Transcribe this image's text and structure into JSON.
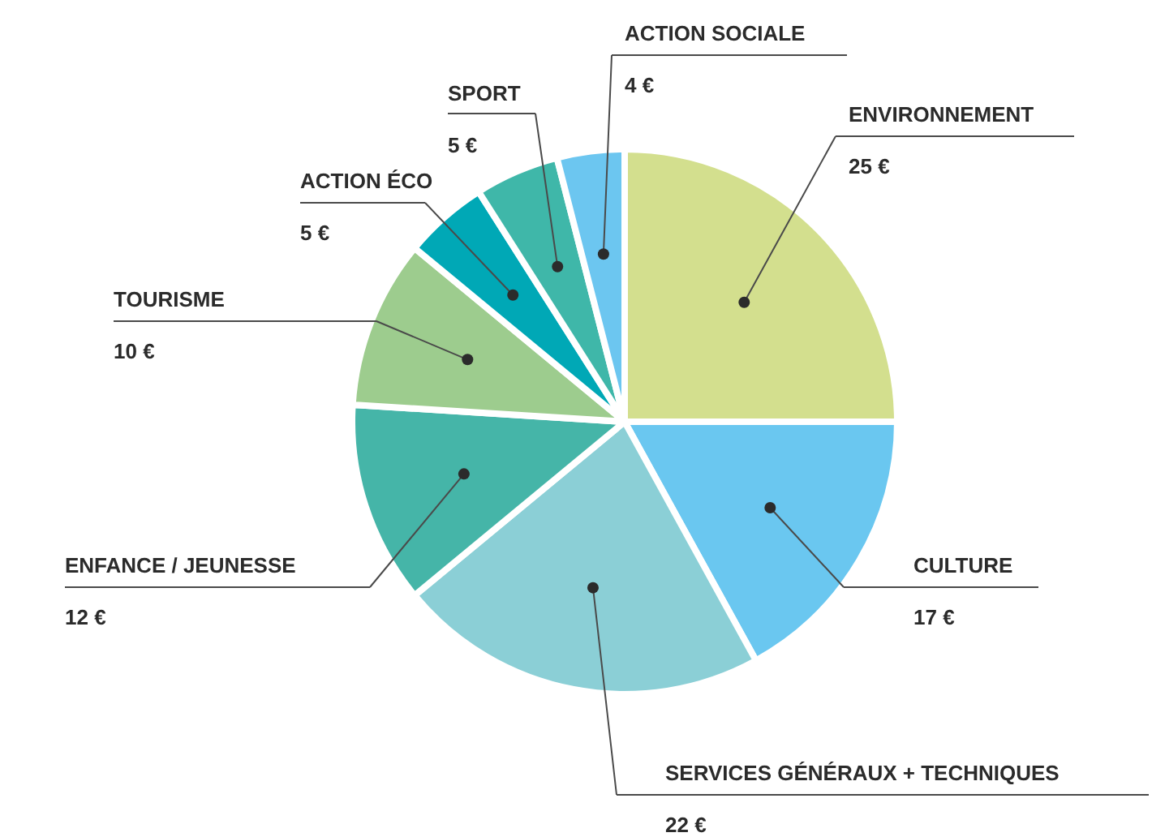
{
  "chart_data": {
    "type": "pie",
    "categories": [
      "ENVIRONNEMENT",
      "CULTURE",
      "SERVICES GÉNÉRAUX + TECHNIQUES",
      "ENFANCE / JEUNESSE",
      "TOURISME",
      "ACTION ÉCO",
      "SPORT",
      "ACTION SOCIALE"
    ],
    "values": [
      25,
      17,
      22,
      12,
      10,
      5,
      5,
      4
    ],
    "colors": [
      "#d3df8e",
      "#6ac7f0",
      "#8bcfd6",
      "#45b5a8",
      "#9dcc8e",
      "#00a8b6",
      "#3fb7a9",
      "#6cc6f0"
    ],
    "value_labels": [
      "25 €",
      "17 €",
      "22 €",
      "12 €",
      "10 €",
      "5 €",
      "5 €",
      "4 €"
    ]
  }
}
